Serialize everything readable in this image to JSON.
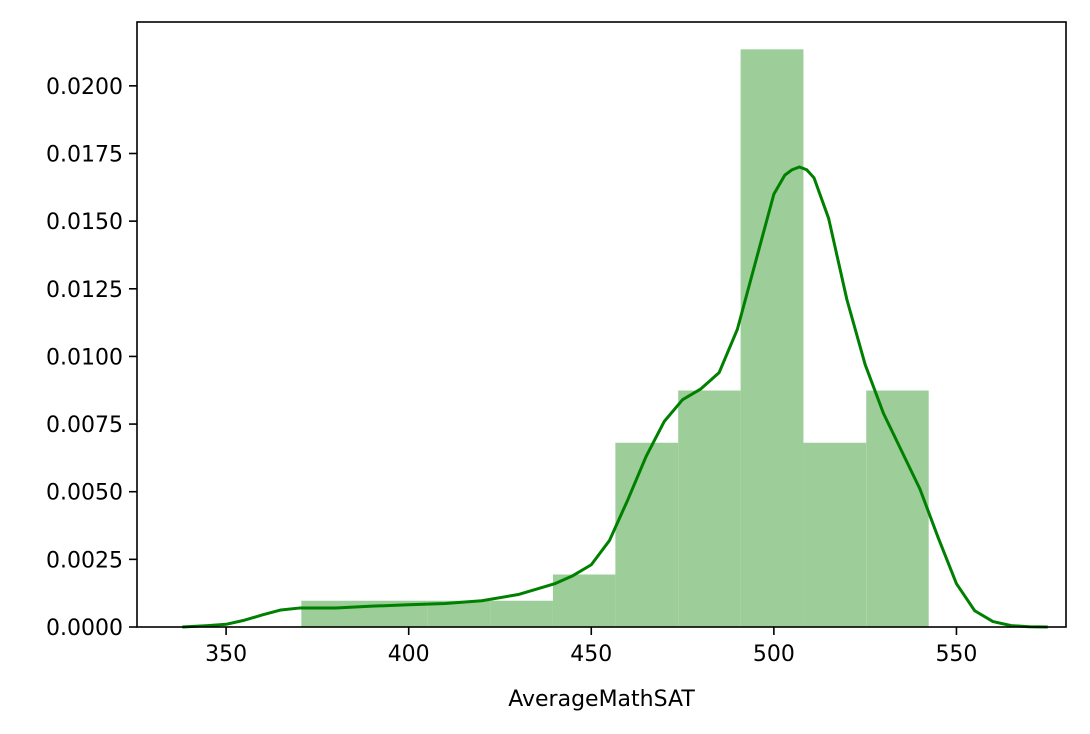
{
  "chart_data": {
    "type": "histogram",
    "title": "",
    "xlabel": "AverageMathSAT",
    "ylabel": "",
    "xlim": [
      325.6,
      580.0
    ],
    "ylim": [
      0,
      0.02236
    ],
    "grid": false,
    "legend": "none",
    "colors": {
      "bars": "#9dcd99",
      "kde": "#008000",
      "axes": "#000000"
    },
    "x_ticks": [
      {
        "value": 350,
        "label": "350"
      },
      {
        "value": 400,
        "label": "400"
      },
      {
        "value": 450,
        "label": "450"
      },
      {
        "value": 500,
        "label": "500"
      },
      {
        "value": 550,
        "label": "550"
      }
    ],
    "y_ticks": [
      {
        "value": 0.0,
        "label": "0.0000"
      },
      {
        "value": 0.0025,
        "label": "0.0025"
      },
      {
        "value": 0.005,
        "label": "0.0050"
      },
      {
        "value": 0.0075,
        "label": "0.0075"
      },
      {
        "value": 0.01,
        "label": "0.0100"
      },
      {
        "value": 0.0125,
        "label": "0.0125"
      },
      {
        "value": 0.015,
        "label": "0.0150"
      },
      {
        "value": 0.0175,
        "label": "0.0175"
      },
      {
        "value": 0.02,
        "label": "0.0200"
      }
    ],
    "bins": [
      {
        "x0": 370.6,
        "x1": 387.9,
        "density": 0.00097
      },
      {
        "x0": 387.9,
        "x1": 405.1,
        "density": 0.00097
      },
      {
        "x0": 405.1,
        "x1": 422.3,
        "density": 0.00097
      },
      {
        "x0": 422.3,
        "x1": 439.5,
        "density": 0.00097
      },
      {
        "x0": 439.5,
        "x1": 456.6,
        "density": 0.00194
      },
      {
        "x0": 456.6,
        "x1": 473.8,
        "density": 0.00681
      },
      {
        "x0": 473.8,
        "x1": 490.9,
        "density": 0.00874
      },
      {
        "x0": 490.9,
        "x1": 508.1,
        "density": 0.02135
      },
      {
        "x0": 508.1,
        "x1": 525.3,
        "density": 0.00681
      },
      {
        "x0": 525.3,
        "x1": 542.4,
        "density": 0.00874
      }
    ],
    "kde": {
      "x": [
        338,
        345,
        350,
        355,
        360,
        365,
        370,
        375,
        380,
        390,
        400,
        410,
        420,
        430,
        440,
        445,
        450,
        455,
        460,
        465,
        470,
        475,
        480,
        485,
        490,
        495,
        500,
        503,
        505,
        507,
        509,
        511,
        515,
        520,
        525,
        530,
        535,
        540,
        545,
        550,
        555,
        560,
        565,
        570,
        575
      ],
      "y": [
        0.0,
        5e-05,
        0.0001,
        0.00025,
        0.00045,
        0.00063,
        0.0007,
        0.0007,
        0.0007,
        0.00077,
        0.00082,
        0.00087,
        0.00097,
        0.0012,
        0.0016,
        0.0019,
        0.0023,
        0.0032,
        0.0047,
        0.0063,
        0.0076,
        0.0084,
        0.0088,
        0.0094,
        0.011,
        0.0135,
        0.016,
        0.0167,
        0.0169,
        0.017,
        0.0169,
        0.0166,
        0.0151,
        0.0121,
        0.0097,
        0.0079,
        0.0065,
        0.0051,
        0.0033,
        0.0016,
        0.0006,
        0.0002,
        5e-05,
        1e-05,
        0.0
      ]
    }
  }
}
